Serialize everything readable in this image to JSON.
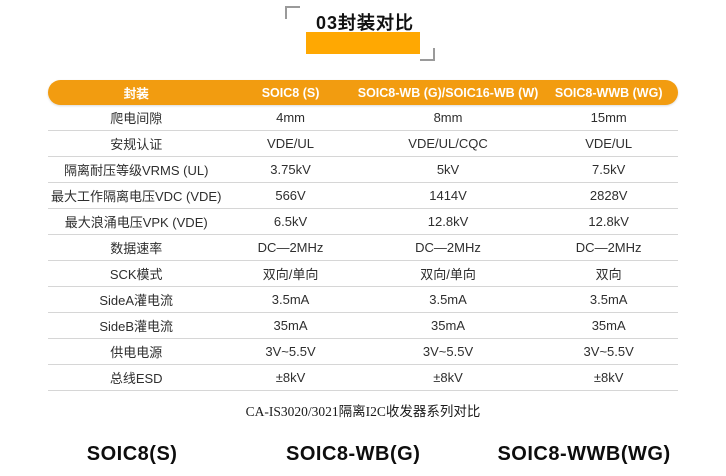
{
  "title": {
    "badge": "03封装对比"
  },
  "table": {
    "columns": [
      "封装",
      "SOIC8 (S)",
      "SOIC8-WB (G)/SOIC16-WB (W)",
      "SOIC8-WWB (WG)"
    ],
    "rows": [
      {
        "label": "爬电间隙",
        "values": [
          "4mm",
          "8mm",
          "15mm"
        ]
      },
      {
        "label": "安规认证",
        "values": [
          "VDE/UL",
          "VDE/UL/CQC",
          "VDE/UL"
        ]
      },
      {
        "label": "隔离耐压等级VRMS (UL)",
        "values": [
          "3.75kV",
          "5kV",
          "7.5kV"
        ]
      },
      {
        "label": "最大工作隔离电压VDC (VDE)",
        "values": [
          "566V",
          "1414V",
          "2828V"
        ]
      },
      {
        "label": "最大浪涌电压VPK (VDE)",
        "values": [
          "6.5kV",
          "12.8kV",
          "12.8kV"
        ]
      },
      {
        "label": "数据速率",
        "values": [
          "DC—2MHz",
          "DC—2MHz",
          "DC—2MHz"
        ]
      },
      {
        "label": "SCK模式",
        "values": [
          "双向/单向",
          "双向/单向",
          "双向"
        ]
      },
      {
        "label": "SideA灌电流",
        "values": [
          "3.5mA",
          "3.5mA",
          "3.5mA"
        ]
      },
      {
        "label": "SideB灌电流",
        "values": [
          "35mA",
          "35mA",
          "35mA"
        ]
      },
      {
        "label": "供电电源",
        "values": [
          "3V~5.5V",
          "3V~5.5V",
          "3V~5.5V"
        ]
      },
      {
        "label": "总线ESD",
        "values": [
          "±8kV",
          "±8kV",
          "±8kV"
        ]
      }
    ],
    "caption": "CA-IS3020/3021隔离I2C收发器系列对比"
  },
  "footer": {
    "labels": [
      "SOIC8(S)",
      "SOIC8-WB(G)",
      "SOIC8-WWB(WG)"
    ]
  },
  "colors": {
    "table_header_orange": "#F29C10",
    "title_highlight_orange": "#FFA802",
    "row_separator_gray": "#D6D6D6"
  }
}
